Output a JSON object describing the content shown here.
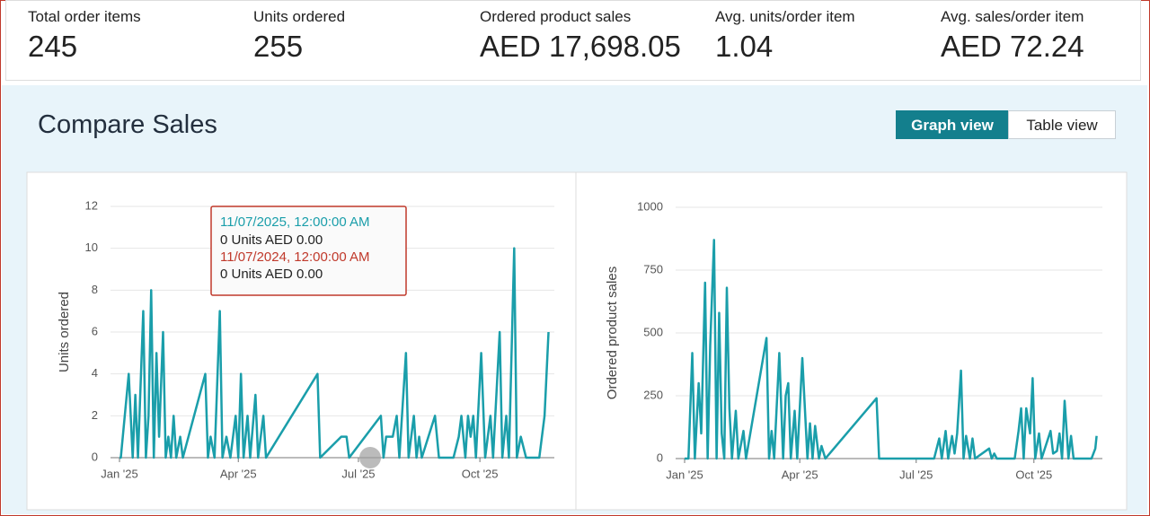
{
  "metrics": [
    {
      "label": "Total order items",
      "value": "245"
    },
    {
      "label": "Units ordered",
      "value": "255"
    },
    {
      "label": "Ordered product sales",
      "value": "AED 17,698.05"
    },
    {
      "label": "Avg. units/order item",
      "value": "1.04"
    },
    {
      "label": "Avg. sales/order item",
      "value": "AED 72.24"
    }
  ],
  "section_title": "Compare Sales",
  "view_toggle": [
    "Graph view",
    "Table view"
  ],
  "tooltip": {
    "current_date": "11/07/2025, 12:00:00 AM",
    "current_values": "0 Units AED 0.00",
    "previous_date": "11/07/2024, 12:00:00 AM",
    "previous_values": "0 Units AED 0.00"
  },
  "chart_data": [
    {
      "type": "line",
      "y_label": "Units ordered",
      "color": "#1a9eaa",
      "xlim": [
        0,
        326
      ],
      "xticks": [
        {
          "value": 0,
          "label": "Jan '25"
        },
        {
          "value": 90,
          "label": "Apr '25"
        },
        {
          "value": 181,
          "label": "Jul '25"
        },
        {
          "value": 273,
          "label": "Oct '25"
        }
      ],
      "ylim": [
        0,
        12
      ],
      "yticks": [
        0,
        2,
        4,
        6,
        8,
        10,
        12
      ],
      "grid": true,
      "x": [
        0,
        1,
        7,
        10,
        12,
        14,
        18,
        20,
        22,
        24,
        26,
        28,
        30,
        33,
        35,
        37,
        39,
        41,
        43,
        46,
        48,
        65,
        67,
        69,
        72,
        76,
        78,
        81,
        84,
        88,
        90,
        92,
        94,
        97,
        99,
        103,
        105,
        109,
        111,
        150,
        152,
        168,
        172,
        174,
        198,
        200,
        202,
        207,
        210,
        212,
        217,
        219,
        223,
        225,
        227,
        229,
        239,
        242,
        253,
        257,
        259,
        262,
        264,
        266,
        268,
        270,
        274,
        277,
        281,
        283,
        288,
        290,
        293,
        295,
        299,
        301,
        304,
        308,
        318,
        320,
        322,
        325
      ],
      "values": [
        0,
        0,
        4,
        0,
        3,
        0,
        7,
        0,
        2,
        8,
        0,
        5,
        1,
        6,
        0,
        1,
        0,
        2,
        0,
        1,
        0,
        4,
        0,
        1,
        0,
        7,
        0,
        1,
        0,
        2,
        0,
        4,
        0,
        2,
        0,
        3,
        0,
        2,
        0,
        4,
        0,
        1,
        1,
        0,
        2,
        0,
        1,
        1,
        2,
        0,
        5,
        0,
        2,
        0,
        1,
        0,
        2,
        0,
        0,
        1,
        2,
        0,
        2,
        1,
        2,
        0,
        5,
        0,
        2,
        0,
        6,
        0,
        2,
        0,
        10,
        0,
        1,
        0,
        0,
        1,
        2,
        6
      ]
    },
    {
      "type": "line",
      "y_label": "Ordered product sales",
      "color": "#1a9eaa",
      "xlim": [
        0,
        323
      ],
      "xticks": [
        {
          "value": 0,
          "label": "Jan '25"
        },
        {
          "value": 90,
          "label": "Apr '25"
        },
        {
          "value": 181,
          "label": "Jul '25"
        },
        {
          "value": 273,
          "label": "Oct '25"
        }
      ],
      "ylim": [
        0,
        1000
      ],
      "yticks": [
        0,
        250,
        500,
        750,
        1000
      ],
      "grid": true,
      "x": [
        0,
        3,
        6,
        8,
        11,
        13,
        16,
        18,
        20,
        23,
        25,
        27,
        29,
        31,
        33,
        35,
        37,
        40,
        42,
        46,
        48,
        64,
        66,
        68,
        70,
        74,
        77,
        79,
        81,
        83,
        86,
        88,
        92,
        94,
        96,
        98,
        100,
        102,
        105,
        107,
        110,
        150,
        152,
        195,
        199,
        201,
        204,
        206,
        209,
        211,
        213,
        216,
        218,
        220,
        223,
        225,
        227,
        238,
        240,
        242,
        244,
        258,
        261,
        263,
        265,
        267,
        270,
        272,
        274,
        277,
        279,
        286,
        288,
        291,
        293,
        295,
        297,
        300,
        302,
        304,
        318,
        321,
        322
      ],
      "values": [
        0,
        0,
        420,
        0,
        300,
        100,
        700,
        0,
        450,
        870,
        0,
        580,
        100,
        0,
        680,
        200,
        0,
        190,
        0,
        110,
        0,
        480,
        0,
        110,
        0,
        420,
        0,
        250,
        300,
        0,
        190,
        0,
        400,
        200,
        0,
        140,
        0,
        130,
        0,
        50,
        0,
        240,
        0,
        0,
        80,
        0,
        110,
        0,
        90,
        20,
        100,
        350,
        0,
        90,
        0,
        80,
        0,
        40,
        0,
        20,
        0,
        0,
        110,
        200,
        0,
        200,
        100,
        320,
        0,
        100,
        0,
        110,
        20,
        30,
        100,
        0,
        230,
        0,
        90,
        0,
        0,
        40,
        90
      ]
    }
  ]
}
